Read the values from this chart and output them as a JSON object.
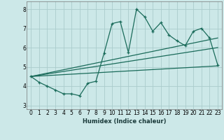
{
  "xlabel": "Humidex (Indice chaleur)",
  "xlim": [
    -0.5,
    23.5
  ],
  "ylim": [
    2.8,
    8.4
  ],
  "xticks": [
    0,
    1,
    2,
    3,
    4,
    5,
    6,
    7,
    8,
    9,
    10,
    11,
    12,
    13,
    14,
    15,
    16,
    17,
    18,
    19,
    20,
    21,
    22,
    23
  ],
  "yticks": [
    3,
    4,
    5,
    6,
    7,
    8
  ],
  "bg_color": "#cce8e8",
  "grid_color": "#aacccc",
  "line_color": "#1a6b5a",
  "line1_x": [
    0,
    1,
    2,
    3,
    4,
    5,
    6,
    7,
    8,
    9,
    10,
    11,
    12,
    13,
    14,
    15,
    16,
    17,
    18,
    19,
    20,
    21,
    22,
    23
  ],
  "line1_y": [
    4.5,
    4.2,
    4.0,
    3.8,
    3.6,
    3.6,
    3.5,
    4.15,
    4.25,
    5.7,
    7.25,
    7.35,
    5.75,
    8.0,
    7.6,
    6.85,
    7.3,
    6.65,
    6.35,
    6.1,
    6.85,
    7.0,
    6.5,
    5.1
  ],
  "line2_x": [
    0,
    23
  ],
  "line2_y": [
    4.5,
    5.05
  ],
  "line3_x": [
    0,
    23
  ],
  "line3_y": [
    4.5,
    6.5
  ],
  "line4_x": [
    0,
    23
  ],
  "line4_y": [
    4.5,
    6.0
  ]
}
